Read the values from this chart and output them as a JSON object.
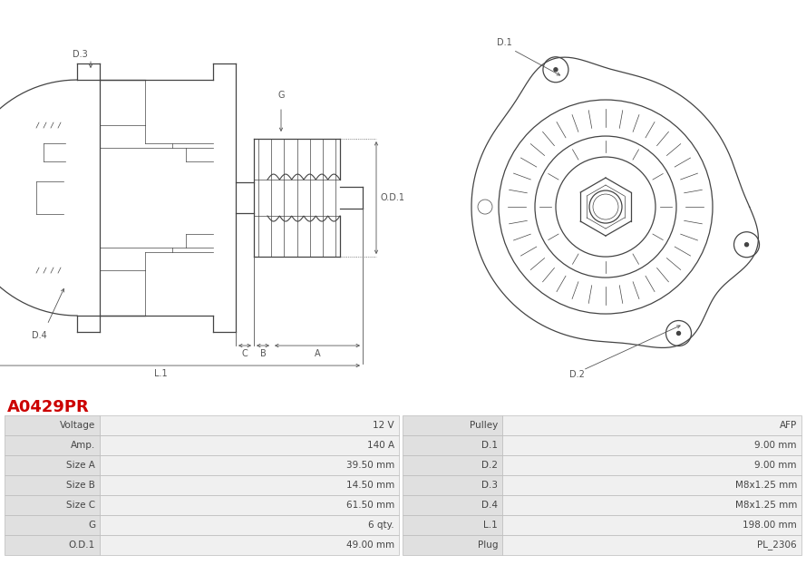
{
  "title": "A0429PR",
  "title_color": "#cc0000",
  "table_headers_left": [
    "Voltage",
    "Amp.",
    "Size A",
    "Size B",
    "Size C",
    "G",
    "O.D.1"
  ],
  "table_values_left": [
    "12 V",
    "140 A",
    "39.50 mm",
    "14.50 mm",
    "61.50 mm",
    "6 qty.",
    "49.00 mm"
  ],
  "table_headers_right": [
    "Pulley",
    "D.1",
    "D.2",
    "D.3",
    "D.4",
    "L.1",
    "Plug"
  ],
  "table_values_right": [
    "AFP",
    "9.00 mm",
    "9.00 mm",
    "M8x1.25 mm",
    "M8x1.25 mm",
    "198.00 mm",
    "PL_2306"
  ],
  "bg_color": "#ffffff",
  "row_color_odd": "#e0e0e0",
  "row_color_even": "#f0f0f0",
  "text_color": "#444444",
  "line_color": "#bbbbbb",
  "drawing_color": "#444444"
}
